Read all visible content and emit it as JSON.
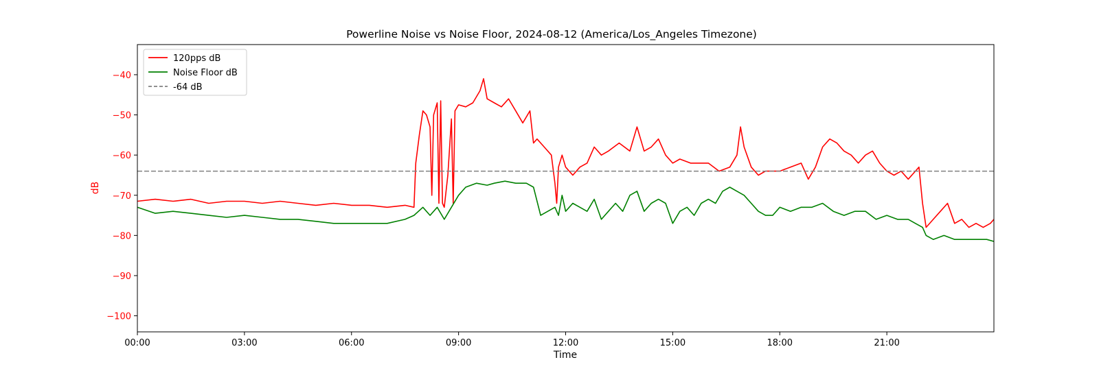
{
  "chart_data": {
    "type": "line",
    "title": "Powerline Noise vs Noise Floor, 2024-08-12 (America/Los_Angeles Timezone)",
    "xlabel": "Time",
    "ylabel": "dB",
    "xlim": [
      0,
      24
    ],
    "ylim": [
      -104,
      -32.5
    ],
    "x_ticks": [
      {
        "value": 0,
        "label": "00:00"
      },
      {
        "value": 3,
        "label": "03:00"
      },
      {
        "value": 6,
        "label": "06:00"
      },
      {
        "value": 9,
        "label": "09:00"
      },
      {
        "value": 12,
        "label": "12:00"
      },
      {
        "value": 15,
        "label": "15:00"
      },
      {
        "value": 18,
        "label": "18:00"
      },
      {
        "value": 21,
        "label": "21:00"
      }
    ],
    "y_ticks": [
      {
        "value": -40,
        "label": "−40"
      },
      {
        "value": -50,
        "label": "−50"
      },
      {
        "value": -60,
        "label": "−60"
      },
      {
        "value": -70,
        "label": "−70"
      },
      {
        "value": -80,
        "label": "−80"
      },
      {
        "value": -90,
        "label": "−90"
      },
      {
        "value": -100,
        "label": "−100"
      }
    ],
    "grid": false,
    "legend_position": "top-left",
    "ylabel_color": "#ff0000",
    "series": [
      {
        "name": "120pps dB",
        "color": "#ff0000",
        "style": "solid",
        "x": [
          0,
          0.5,
          1,
          1.5,
          2,
          2.5,
          3,
          3.5,
          4,
          4.5,
          5,
          5.5,
          6,
          6.5,
          7,
          7.5,
          7.75,
          7.8,
          7.9,
          8.0,
          8.1,
          8.2,
          8.25,
          8.3,
          8.4,
          8.45,
          8.5,
          8.55,
          8.6,
          8.7,
          8.8,
          8.85,
          8.9,
          9.0,
          9.2,
          9.4,
          9.6,
          9.7,
          9.8,
          10.0,
          10.2,
          10.4,
          10.6,
          10.8,
          11.0,
          11.1,
          11.2,
          11.4,
          11.6,
          11.7,
          11.75,
          11.8,
          11.9,
          12.0,
          12.2,
          12.4,
          12.6,
          12.8,
          13.0,
          13.2,
          13.5,
          13.8,
          14.0,
          14.2,
          14.4,
          14.6,
          14.8,
          15.0,
          15.2,
          15.5,
          15.8,
          16.0,
          16.3,
          16.6,
          16.8,
          16.9,
          17.0,
          17.2,
          17.4,
          17.6,
          17.8,
          18.0,
          18.3,
          18.6,
          18.8,
          19.0,
          19.2,
          19.4,
          19.6,
          19.8,
          20.0,
          20.2,
          20.4,
          20.6,
          20.8,
          21.0,
          21.2,
          21.4,
          21.6,
          21.8,
          21.9,
          22.0,
          22.1,
          22.3,
          22.5,
          22.7,
          22.9,
          23.1,
          23.3,
          23.5,
          23.7,
          23.9,
          24.0
        ],
        "y": [
          -71.5,
          -71,
          -71.5,
          -71,
          -72,
          -71.5,
          -71.5,
          -72,
          -71.5,
          -72,
          -72.5,
          -72,
          -72.5,
          -72.5,
          -73,
          -72.5,
          -73,
          -62,
          -55,
          -49,
          -50,
          -53,
          -70,
          -50,
          -47,
          -72,
          -46.5,
          -72,
          -73,
          -65,
          -51,
          -72,
          -49,
          -47.5,
          -48,
          -47,
          -44,
          -41,
          -46,
          -47,
          -48,
          -46,
          -49,
          -52,
          -49,
          -57,
          -56,
          -58,
          -60,
          -67,
          -72,
          -63,
          -60,
          -63,
          -65,
          -63,
          -62,
          -58,
          -60,
          -59,
          -57,
          -59,
          -53,
          -59,
          -58,
          -56,
          -60,
          -62,
          -61,
          -62,
          -62,
          -62,
          -64,
          -63,
          -60,
          -53,
          -58,
          -63,
          -65,
          -64,
          -64,
          -64,
          -63,
          -62,
          -66,
          -63,
          -58,
          -56,
          -57,
          -59,
          -60,
          -62,
          -60,
          -59,
          -62,
          -64,
          -65,
          -64,
          -66,
          -64,
          -63,
          -72,
          -78,
          -76,
          -74,
          -72,
          -77,
          -76,
          -78,
          -77,
          -78,
          -77,
          -76
        ]
      },
      {
        "name": "Noise Floor dB",
        "color": "#008000",
        "style": "solid",
        "x": [
          0,
          0.5,
          1,
          1.5,
          2,
          2.5,
          3,
          3.5,
          4,
          4.5,
          5,
          5.5,
          6,
          6.5,
          7,
          7.5,
          7.75,
          8.0,
          8.2,
          8.4,
          8.6,
          8.8,
          9.0,
          9.2,
          9.5,
          9.8,
          10.0,
          10.3,
          10.6,
          10.9,
          11.1,
          11.3,
          11.5,
          11.7,
          11.8,
          11.9,
          12.0,
          12.2,
          12.4,
          12.6,
          12.8,
          13.0,
          13.2,
          13.4,
          13.6,
          13.8,
          14.0,
          14.2,
          14.4,
          14.6,
          14.8,
          15.0,
          15.2,
          15.4,
          15.6,
          15.8,
          16.0,
          16.2,
          16.4,
          16.6,
          16.8,
          17.0,
          17.2,
          17.4,
          17.6,
          17.8,
          18.0,
          18.3,
          18.6,
          18.9,
          19.2,
          19.5,
          19.8,
          20.1,
          20.4,
          20.7,
          21.0,
          21.3,
          21.6,
          21.8,
          22.0,
          22.1,
          22.3,
          22.6,
          22.9,
          23.2,
          23.5,
          23.8,
          24.0
        ],
        "y": [
          -73,
          -74.5,
          -74,
          -74.5,
          -75,
          -75.5,
          -75,
          -75.5,
          -76,
          -76,
          -76.5,
          -77,
          -77,
          -77,
          -77,
          -76,
          -75,
          -73,
          -75,
          -73,
          -76,
          -73,
          -70,
          -68,
          -67,
          -67.5,
          -67,
          -66.5,
          -67,
          -67,
          -68,
          -75,
          -74,
          -73,
          -75,
          -70,
          -74,
          -72,
          -73,
          -74,
          -71,
          -76,
          -74,
          -72,
          -74,
          -70,
          -69,
          -74,
          -72,
          -71,
          -72,
          -77,
          -74,
          -73,
          -75,
          -72,
          -71,
          -72,
          -69,
          -68,
          -69,
          -70,
          -72,
          -74,
          -75,
          -75,
          -73,
          -74,
          -73,
          -73,
          -72,
          -74,
          -75,
          -74,
          -74,
          -76,
          -75,
          -76,
          -76,
          -77,
          -78,
          -80,
          -81,
          -80,
          -81,
          -81,
          -81,
          -81,
          -81.5
        ]
      },
      {
        "name": "-64 dB",
        "color": "#808080",
        "style": "dashed",
        "x": [
          0,
          24
        ],
        "y": [
          -64,
          -64
        ]
      }
    ]
  }
}
